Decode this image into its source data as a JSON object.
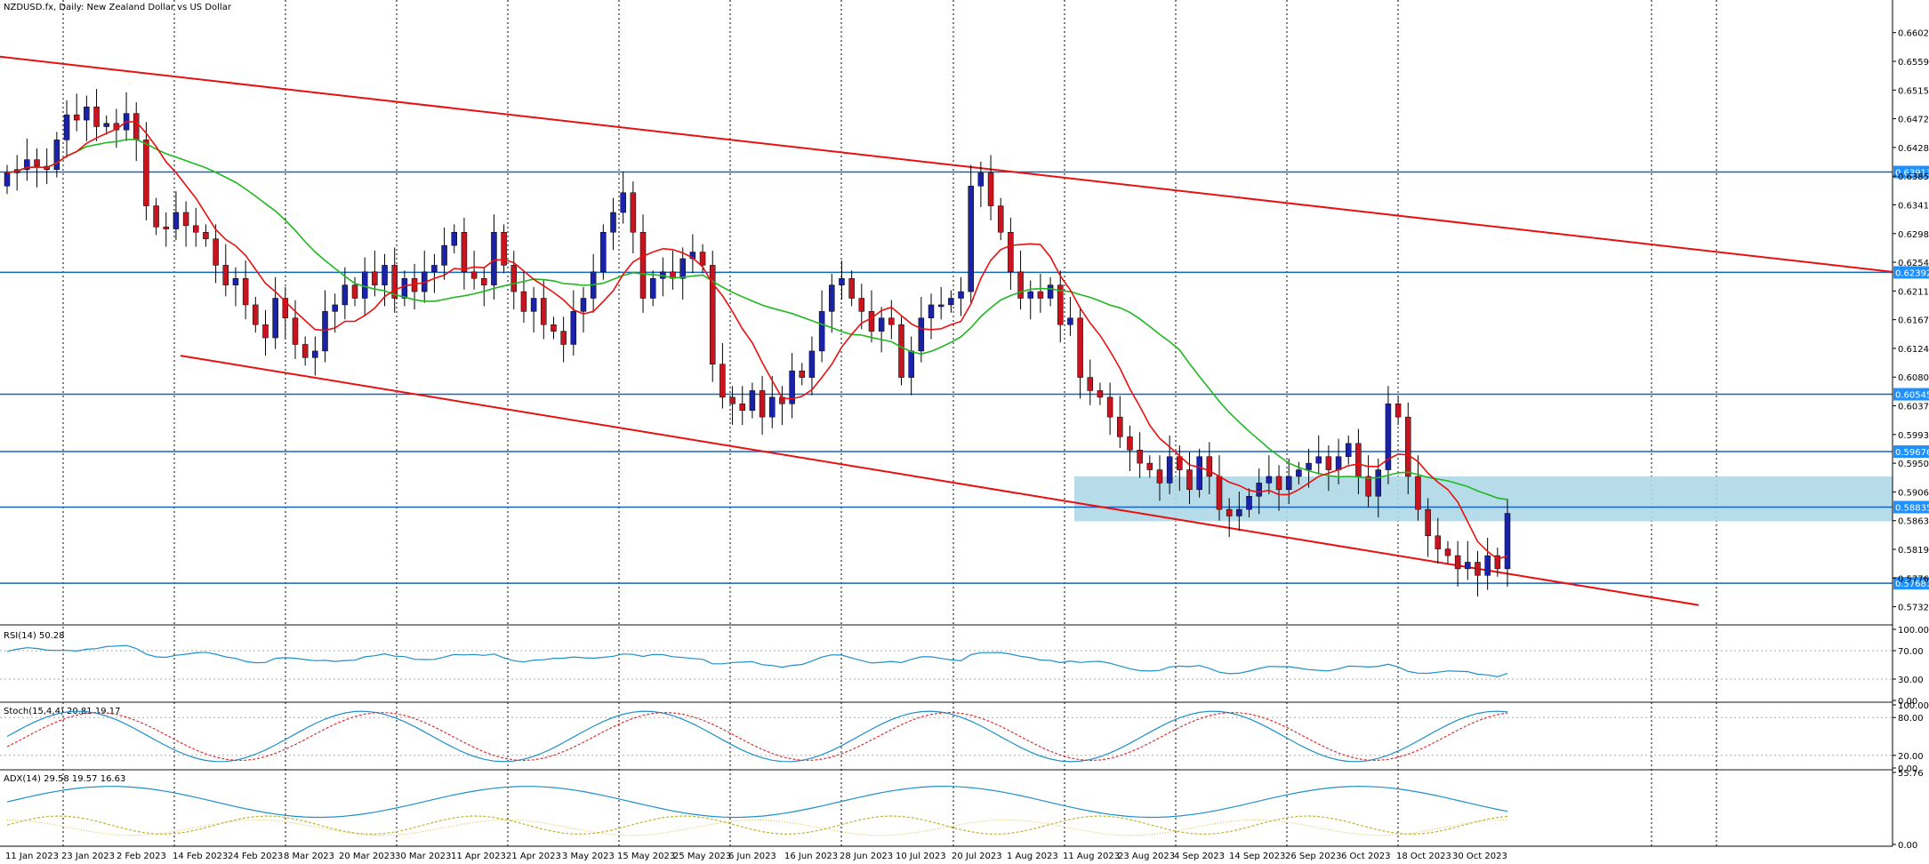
{
  "window": {
    "title": "NZDUSD.fx, Daily:  New Zealand Dollar vs US Dollar"
  },
  "colors": {
    "bull": "#1a22a8",
    "bear": "#c8141e",
    "ma_fast": "#e81010",
    "ma_slow": "#1fb81f",
    "hline": "#1565c0",
    "trend": "#e81010",
    "zone": "#add8e6",
    "osc": "#1e90c8",
    "stoch_signal": "#e03030",
    "adx_plus": "#b8b830",
    "adx_minus": "#d8c040",
    "grid": "#000000",
    "label_bg": "#1e90ff"
  },
  "chart_data": [
    {
      "type": "candlestick",
      "symbol": "NZDUSD.fx",
      "timeframe": "Daily",
      "title": "NZDUSD.fx, Daily:  New Zealand Dollar vs US Dollar",
      "ylim": [
        0.5705,
        0.6625
      ],
      "price_ticks": [
        "0.66025",
        "0.65590",
        "0.65155",
        "0.64720",
        "0.64285",
        "0.63850",
        "0.63415",
        "0.62980",
        "0.62545",
        "0.62110",
        "0.61675",
        "0.61240",
        "0.60805",
        "0.60370",
        "0.59935",
        "0.59500",
        "0.59065",
        "0.58630",
        "0.58195",
        "0.57760",
        "0.57325"
      ],
      "date_labels": [
        "11 Jan 2023",
        "23 Jan 2023",
        "2 Feb 2023",
        "14 Feb 2023",
        "24 Feb 2023",
        "8 Mar 2023",
        "20 Mar 2023",
        "30 Mar 2023",
        "11 Apr 2023",
        "21 Apr 2023",
        "3 May 2023",
        "15 May 2023",
        "25 May 2023",
        "6 Jun 2023",
        "16 Jun 2023",
        "28 Jun 2023",
        "10 Jul 2023",
        "20 Jul 2023",
        "1 Aug 2023",
        "11 Aug 2023",
        "23 Aug 2023",
        "4 Sep 2023",
        "14 Sep 2023",
        "26 Sep 2023",
        "6 Oct 2023",
        "18 Oct 2023",
        "30 Oct 2023"
      ],
      "horizontal_levels": [
        {
          "value": 0.63913,
          "label": "0.63913"
        },
        {
          "value": 0.62392,
          "label": "0.62392"
        },
        {
          "value": 0.60545,
          "label": "0.60545"
        },
        {
          "value": 0.59676,
          "label": "0.59676"
        },
        {
          "value": 0.58835,
          "label": "0.58835"
        },
        {
          "value": 0.57681,
          "label": "0.57681"
        }
      ],
      "zone": {
        "from_date": "7 Aug 2023",
        "to_date": "end",
        "low": 0.5862,
        "high": 0.593
      },
      "channel_upper": {
        "from": [
          "11 Jan 2023",
          0.6566
        ],
        "to": [
          "end",
          0.624
        ]
      },
      "channel_lower": {
        "from": [
          "24 Feb 2023",
          0.6113
        ],
        "to": [
          "end",
          0.5735
        ]
      },
      "ohlc_close_path": [
        0.639,
        0.6395,
        0.641,
        0.64,
        0.6395,
        0.644,
        0.6478,
        0.647,
        0.649,
        0.646,
        0.6465,
        0.6455,
        0.648,
        0.644,
        0.634,
        0.6308,
        0.6305,
        0.633,
        0.631,
        0.63,
        0.629,
        0.625,
        0.622,
        0.623,
        0.619,
        0.616,
        0.614,
        0.62,
        0.617,
        0.613,
        0.611,
        0.612,
        0.618,
        0.619,
        0.622,
        0.62,
        0.624,
        0.622,
        0.625,
        0.62,
        0.623,
        0.621,
        0.624,
        0.625,
        0.628,
        0.63,
        0.624,
        0.623,
        0.622,
        0.63,
        0.625,
        0.621,
        0.618,
        0.62,
        0.616,
        0.615,
        0.613,
        0.618,
        0.62,
        0.624,
        0.63,
        0.633,
        0.636,
        0.63,
        0.62,
        0.623,
        0.624,
        0.623,
        0.626,
        0.627,
        0.625,
        0.61,
        0.605,
        0.604,
        0.603,
        0.606,
        0.602,
        0.605,
        0.604,
        0.609,
        0.608,
        0.612,
        0.618,
        0.622,
        0.623,
        0.62,
        0.618,
        0.615,
        0.617,
        0.616,
        0.608,
        0.612,
        0.617,
        0.619,
        0.619,
        0.62,
        0.621,
        0.637,
        0.639,
        0.634,
        0.63,
        0.624,
        0.62,
        0.621,
        0.62,
        0.622,
        0.616,
        0.617,
        0.608,
        0.606,
        0.605,
        0.602,
        0.599,
        0.597,
        0.595,
        0.594,
        0.592,
        0.596,
        0.594,
        0.591,
        0.596,
        0.593,
        0.588,
        0.587,
        0.588,
        0.59,
        0.592,
        0.593,
        0.591,
        0.593,
        0.594,
        0.595,
        0.596,
        0.594,
        0.596,
        0.598,
        0.593,
        0.59,
        0.594,
        0.604,
        0.602,
        0.593,
        0.588,
        0.584,
        0.582,
        0.581,
        0.579,
        0.58,
        0.578,
        0.581,
        0.579,
        0.5874
      ]
    },
    {
      "type": "line",
      "name": "RSI(14) 50.28",
      "ylim": [
        0,
        100
      ],
      "ticks": [
        "100.00",
        "70.00",
        "30.00",
        "0.00"
      ]
    },
    {
      "type": "line",
      "name": "Stoch(15,4,4) 20.81 19.17",
      "ylim": [
        0,
        100
      ],
      "ticks": [
        "100.00",
        "80.00",
        "20.00",
        "0.00"
      ]
    },
    {
      "type": "line",
      "name": "ADX(14) 29.58 19.57 16.63",
      "ylim": [
        0,
        55.76
      ],
      "ticks": [
        "55.76",
        "0.00"
      ]
    }
  ]
}
